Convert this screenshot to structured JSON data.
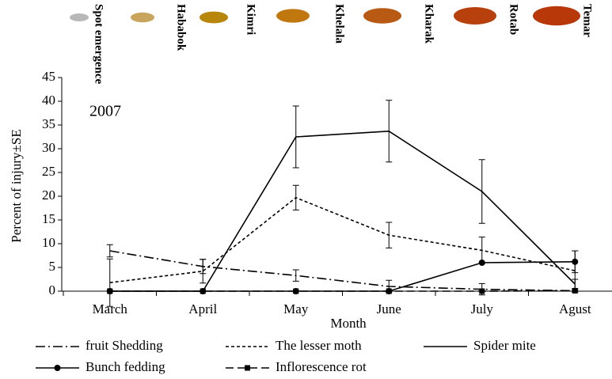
{
  "chart_data": {
    "type": "line",
    "stages": [
      {
        "label": "Spot emergence",
        "color": "#b8b8b8"
      },
      {
        "label": "Hababok",
        "color": "#c9a45c"
      },
      {
        "label": "Kimri",
        "color": "#b8860b"
      },
      {
        "label": "Khelala",
        "color": "#c0780e"
      },
      {
        "label": "Kharak",
        "color": "#b85a14"
      },
      {
        "label": "Rotab",
        "color": "#b8400c"
      },
      {
        "label": "Temar",
        "color": "#b8380a"
      }
    ],
    "annotation": "2007",
    "x_label": "Month",
    "y_label": "Percent of injury±SE",
    "categories": [
      "March",
      "April",
      "May",
      "June",
      "July",
      "Agust"
    ],
    "ylim": [
      0,
      45
    ],
    "yticks": [
      0,
      5,
      10,
      15,
      20,
      25,
      30,
      35,
      40,
      45
    ],
    "series": [
      {
        "name": "fruit Shedding",
        "color": "#000000",
        "dash": "12 4 2 4",
        "marker": "none",
        "values": [
          8.5,
          5.2,
          3.3,
          1.0,
          0.4,
          0.1
        ],
        "errors": [
          1.3,
          1.5,
          1.2,
          1.3,
          1.2,
          0.3
        ]
      },
      {
        "name": "The lesser moth",
        "color": "#000000",
        "dash": "4 3",
        "marker": "none",
        "values": [
          1.8,
          4.2,
          19.7,
          11.8,
          8.6,
          4.3
        ],
        "errors": [
          5,
          2.5,
          2.6,
          2.7,
          2.8,
          4.2
        ]
      },
      {
        "name": "Spider mite",
        "color": "#000000",
        "dash": "none",
        "marker": "none",
        "values": [
          0,
          0,
          32.5,
          33.7,
          21,
          1.5
        ],
        "errors": [
          0,
          0,
          6.5,
          6.5,
          6.7,
          1
        ]
      },
      {
        "name": "Bunch fedding",
        "color": "#000000",
        "dash": "none",
        "marker": "circle",
        "values": [
          0,
          0,
          0,
          0,
          6,
          6.2
        ],
        "errors": [
          0,
          0,
          0,
          0,
          0,
          2.3
        ]
      },
      {
        "name": "Inflorescence rot",
        "color": "#000000",
        "dash": "10 5",
        "marker": "square",
        "values": [
          0,
          0,
          0,
          0,
          0,
          0.1
        ],
        "errors": [
          0,
          0,
          0,
          0,
          0,
          0
        ]
      }
    ]
  }
}
